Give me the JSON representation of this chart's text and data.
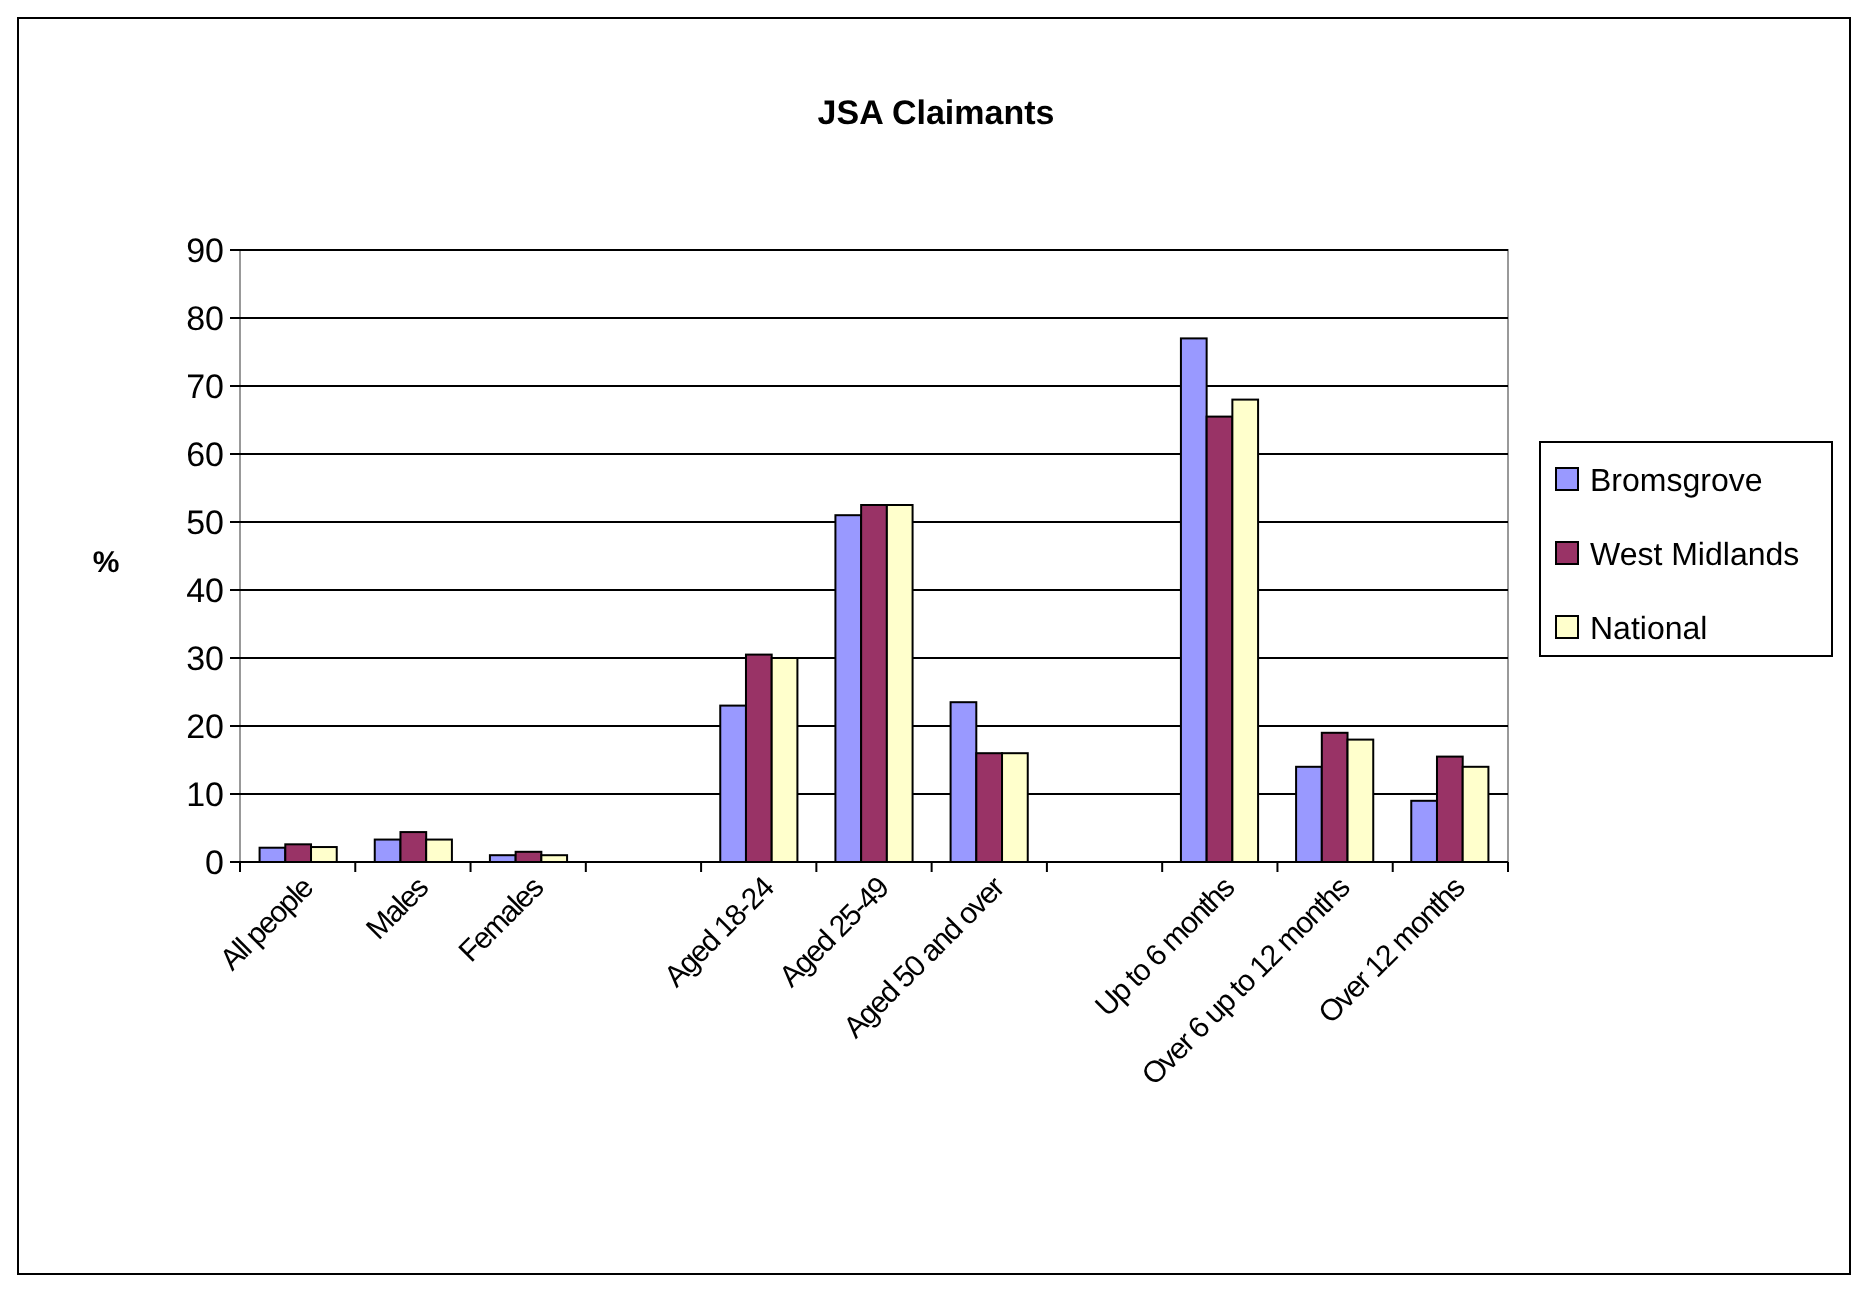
{
  "chart_data": {
    "type": "bar",
    "title": "JSA Claimants",
    "ylabel": "%",
    "categories": [
      "All people",
      "Males",
      "Females",
      null,
      "Aged 18-24",
      "Aged 25-49",
      "Aged 50 and over",
      null,
      "Up to 6 months",
      "Over 6 up to 12 months",
      "Over 12 months"
    ],
    "series": [
      {
        "name": "Bromsgrove",
        "color": "#9999ff",
        "values": [
          2.1,
          3.3,
          1.0,
          null,
          23,
          51,
          23.5,
          null,
          77,
          14,
          9
        ]
      },
      {
        "name": "West Midlands",
        "color": "#993366",
        "values": [
          2.6,
          4.4,
          1.5,
          null,
          30.5,
          52.5,
          16,
          null,
          65.5,
          19,
          15.5
        ]
      },
      {
        "name": "National",
        "color": "#ffffcc",
        "values": [
          2.2,
          3.3,
          1.0,
          null,
          30,
          52.5,
          16,
          null,
          68,
          18,
          14
        ]
      }
    ],
    "ylim": [
      0,
      90
    ],
    "yticks": [
      0,
      10,
      20,
      30,
      40,
      50,
      60,
      70,
      80,
      90
    ],
    "grid": "y",
    "legend": "right"
  }
}
